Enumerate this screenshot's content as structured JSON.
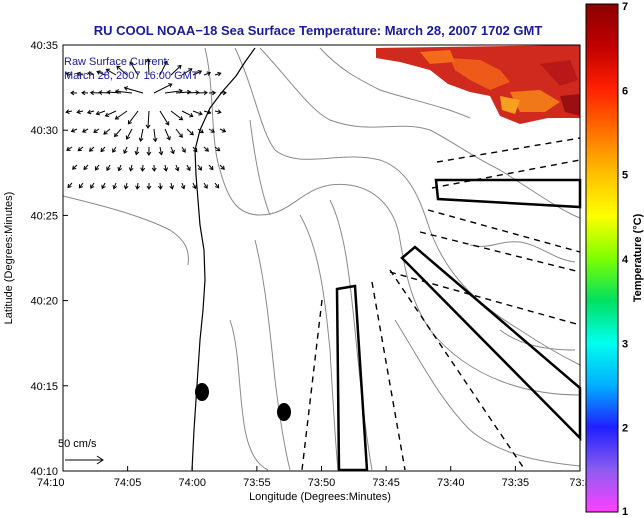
{
  "title": "RU COOL  NOAA−18  Sea Surface Temperature:  March 28, 2007 1702 GMT",
  "overlay": {
    "line1": "Raw Surface Current:",
    "line2": "March 28, 2007 16:00 GMT"
  },
  "scale_label": "50 cm/s",
  "axes": {
    "xlabel": "Longitude (Degrees:Minutes)",
    "ylabel": "Latitude (Degrees:Minutes)",
    "xticks": [
      "74:10",
      "74:05",
      "74:00",
      "73:55",
      "73:50",
      "73:45",
      "73:40",
      "73:35",
      "73:3"
    ],
    "yticks": [
      "40:35",
      "40:30",
      "40:25",
      "40:20",
      "40:15",
      "40:10"
    ]
  },
  "colorbar": {
    "label": "Temperature (°C)",
    "ticks": [
      "7",
      "6",
      "5",
      "4",
      "3",
      "2",
      "1"
    ],
    "min": 1,
    "max": 7,
    "colors": [
      "#ff40ff",
      "#8b5cf0",
      "#2020ff",
      "#00b0ff",
      "#00ffee",
      "#00e060",
      "#80ff00",
      "#ffff00",
      "#ffc000",
      "#ff7000",
      "#ff2000",
      "#c00000",
      "#8b0000"
    ]
  },
  "colors": {
    "title": "#1a1aa0",
    "contour": "#8a8a8a"
  }
}
